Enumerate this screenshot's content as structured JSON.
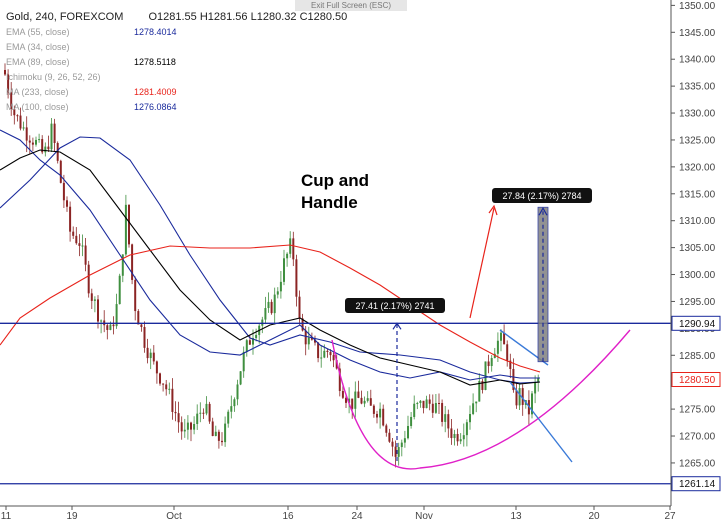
{
  "header": {
    "symbol": "Gold, 240, FOREXCOM",
    "open": "O1281.55",
    "high": "H1281.56",
    "low": "L1280.32",
    "close": "C1280.50",
    "exit_fullscreen": "Exit Full Screen (ESC)"
  },
  "indicators": [
    {
      "label": "EMA (55, close)",
      "value": "1278.4014",
      "color": "#1a2a9c"
    },
    {
      "label": "EMA (34, close)",
      "value": "",
      "color": "#1a2a9c"
    },
    {
      "label": "EMA (89, close)",
      "value": "1278.5118",
      "color": "#000000"
    },
    {
      "label": "Ichimoku (9, 26, 52, 26)",
      "value": "",
      "color": "#3aa0c8"
    },
    {
      "label": "MA (233, close)",
      "value": "1281.4009",
      "color": "#e8231b"
    },
    {
      "label": "MA (100, close)",
      "value": "1276.0864",
      "color": "#1a2a9c"
    }
  ],
  "chart_data": {
    "type": "line",
    "title": "Cup and\nHandle",
    "price_axis": {
      "min": 1257,
      "max": 1351,
      "ticks": [
        1265,
        1270,
        1275,
        1280,
        1285,
        1290,
        1295,
        1300,
        1305,
        1310,
        1315,
        1320,
        1325,
        1330,
        1335,
        1340,
        1345,
        1350
      ]
    },
    "time_axis_labels": [
      "11",
      "19",
      "Oct",
      "16",
      "24",
      "Nov",
      "13",
      "20",
      "27"
    ],
    "horizontal_levels": [
      {
        "price": 1290.94,
        "label": "1290.94",
        "color": "#1a2a9c"
      },
      {
        "price": 1261.14,
        "label": "1261.14",
        "color": "#1a2a9c"
      }
    ],
    "current_price": {
      "price": 1280.5,
      "label": "1280.50",
      "color": "#e8231b"
    },
    "measurements": [
      {
        "label": "27.41 (2.17%) 2741"
      },
      {
        "label": "27.84 (2.17%) 2784"
      }
    ],
    "annotation_color_cup": "#e020c8",
    "annotation_color_handle": "#3a7ad8",
    "candle_up_color": "#3f8f3f",
    "candle_down_color": "#8b2424",
    "grid": false
  }
}
